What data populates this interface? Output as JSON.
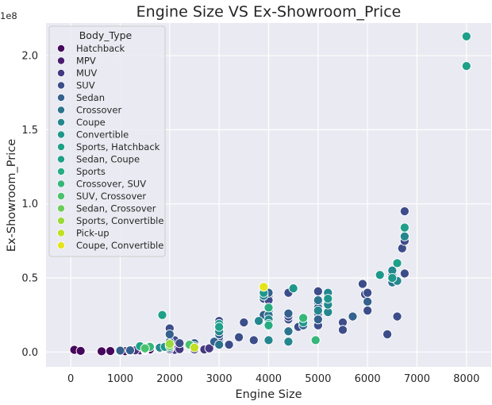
{
  "chart_data": {
    "type": "scatter",
    "title": "Engine Size VS Ex-Showroom_Price",
    "xlabel": "Engine Size",
    "ylabel": "Ex-Showroom_Price",
    "y_offset_label": "1e8",
    "xlim": [
      -500,
      8500
    ],
    "ylim": [
      -10000000,
      222000000
    ],
    "x_ticks": [
      0,
      1000,
      2000,
      3000,
      4000,
      5000,
      6000,
      7000,
      8000
    ],
    "x_tick_labels": [
      "0",
      "1000",
      "2000",
      "3000",
      "4000",
      "5000",
      "6000",
      "7000",
      "8000"
    ],
    "y_ticks": [
      0,
      50000000,
      100000000,
      150000000,
      200000000
    ],
    "y_tick_labels": [
      "0.0",
      "0.5",
      "1.0",
      "1.5",
      "2.0"
    ],
    "grid": true,
    "legend": {
      "title": "Body_Type",
      "placement": "top-left",
      "entries": [
        {
          "name": "Hatchback",
          "color": "#46085c"
        },
        {
          "name": "MPV",
          "color": "#481d6f"
        },
        {
          "name": "MUV",
          "color": "#453781"
        },
        {
          "name": "SUV",
          "color": "#3d4d8a"
        },
        {
          "name": "Sedan",
          "color": "#34618d"
        },
        {
          "name": "Crossover",
          "color": "#2b748e"
        },
        {
          "name": "Coupe",
          "color": "#24878e"
        },
        {
          "name": "Convertible",
          "color": "#1f988b"
        },
        {
          "name": "Sports, Hatchback",
          "color": "#1fa187"
        },
        {
          "name": "Sedan, Coupe",
          "color": "#1fa088"
        },
        {
          "name": "Sports",
          "color": "#27ad81"
        },
        {
          "name": "Crossover, SUV",
          "color": "#35b779"
        },
        {
          "name": "SUV, Crossover",
          "color": "#4ac16d"
        },
        {
          "name": "Sedan, Crossover",
          "color": "#6ccd5a"
        },
        {
          "name": "Sports, Convertible",
          "color": "#9bd93c"
        },
        {
          "name": "Pick-up",
          "color": "#c2df23"
        },
        {
          "name": "Coupe, Convertible",
          "color": "#e5e419"
        }
      ]
    },
    "series": [
      {
        "name": "Hatchback",
        "points": [
          [
            72,
            1500000
          ],
          [
            200,
            800000
          ],
          [
            624,
            500000
          ],
          [
            800,
            700000
          ],
          [
            998,
            500000
          ],
          [
            1000,
            800000
          ],
          [
            1100,
            600000
          ],
          [
            1200,
            900000
          ],
          [
            1197,
            700000
          ],
          [
            1248,
            1000000
          ],
          [
            1300,
            1200000
          ],
          [
            1400,
            1500000
          ],
          [
            1500,
            2000000
          ],
          [
            1600,
            1800000
          ]
        ]
      },
      {
        "name": "MPV",
        "points": [
          [
            1200,
            800000
          ],
          [
            1400,
            1100000
          ],
          [
            1500,
            1300000
          ],
          [
            2000,
            3000000
          ],
          [
            2200,
            4000000
          ]
        ]
      },
      {
        "name": "MUV",
        "points": [
          [
            1300,
            1200000
          ],
          [
            1500,
            1500000
          ],
          [
            2100,
            1500000
          ],
          [
            2200,
            2000000
          ],
          [
            2500,
            1800000
          ],
          [
            2700,
            1800000
          ],
          [
            2800,
            2500000
          ]
        ]
      },
      {
        "name": "SUV",
        "points": [
          [
            1200,
            1200000
          ],
          [
            1500,
            2000000
          ],
          [
            1800,
            2500000
          ],
          [
            2000,
            2000000
          ],
          [
            2000,
            16000000
          ],
          [
            2100,
            8000000
          ],
          [
            2200,
            6000000
          ],
          [
            2500,
            5000000
          ],
          [
            3000,
            8000000
          ],
          [
            3000,
            10000000
          ],
          [
            3000,
            12000000
          ],
          [
            3000,
            18000000
          ],
          [
            3000,
            21000000
          ],
          [
            3200,
            5000000
          ],
          [
            3400,
            10000000
          ],
          [
            3500,
            20000000
          ],
          [
            3700,
            8000000
          ],
          [
            3900,
            36000000
          ],
          [
            4000,
            27000000
          ],
          [
            4000,
            38000000
          ],
          [
            4000,
            35000000
          ],
          [
            4400,
            40000000
          ],
          [
            4400,
            22000000
          ],
          [
            4400,
            24000000
          ],
          [
            4600,
            17000000
          ],
          [
            5000,
            26000000
          ],
          [
            5000,
            18000000
          ],
          [
            5000,
            41000000
          ],
          [
            5000,
            33000000
          ],
          [
            5500,
            20000000
          ],
          [
            5500,
            15000000
          ],
          [
            5900,
            46000000
          ],
          [
            5950,
            39000000
          ],
          [
            6000,
            28000000
          ],
          [
            6000,
            40000000
          ],
          [
            6400,
            12000000
          ],
          [
            6500,
            52000000
          ],
          [
            6600,
            24000000
          ],
          [
            6700,
            70000000
          ],
          [
            6750,
            75000000
          ],
          [
            6750,
            95000000
          ],
          [
            6750,
            53000000
          ]
        ]
      },
      {
        "name": "Sedan",
        "points": [
          [
            1000,
            1000000
          ],
          [
            1200,
            1200000
          ],
          [
            1500,
            2500000
          ],
          [
            1600,
            4000000
          ],
          [
            2000,
            4000000
          ],
          [
            2000,
            7000000
          ],
          [
            2000,
            12000000
          ],
          [
            2500,
            6000000
          ],
          [
            2900,
            7000000
          ],
          [
            3000,
            12000000
          ],
          [
            3000,
            15000000
          ],
          [
            3900,
            25000000
          ],
          [
            4000,
            40000000
          ],
          [
            4000,
            22000000
          ],
          [
            4400,
            26000000
          ],
          [
            4400,
            14000000
          ],
          [
            4700,
            18000000
          ],
          [
            5000,
            22000000
          ],
          [
            5000,
            30000000
          ],
          [
            5700,
            24000000
          ],
          [
            6000,
            34000000
          ]
        ]
      },
      {
        "name": "Crossover",
        "points": [
          [
            1500,
            2000000
          ],
          [
            2000,
            3000000
          ],
          [
            2500,
            4000000
          ],
          [
            3000,
            5000000
          ],
          [
            4000,
            25000000
          ],
          [
            4400,
            14000000
          ],
          [
            5000,
            35000000
          ],
          [
            5200,
            38000000
          ],
          [
            6500,
            47000000
          ]
        ]
      },
      {
        "name": "Coupe",
        "points": [
          [
            1800,
            3000000
          ],
          [
            2000,
            5000000
          ],
          [
            3000,
            14000000
          ],
          [
            3800,
            21000000
          ],
          [
            3900,
            38000000
          ],
          [
            4000,
            22000000
          ],
          [
            4000,
            8000000
          ],
          [
            4400,
            7000000
          ],
          [
            5000,
            28000000
          ],
          [
            5200,
            27000000
          ],
          [
            5200,
            32000000
          ],
          [
            5200,
            40000000
          ],
          [
            6500,
            55000000
          ],
          [
            6600,
            48000000
          ],
          [
            6750,
            78000000
          ]
        ]
      },
      {
        "name": "Convertible",
        "points": [
          [
            1500,
            3000000
          ],
          [
            1900,
            3500000
          ],
          [
            3000,
            19000000
          ],
          [
            3900,
            40000000
          ],
          [
            4000,
            19000000
          ],
          [
            4500,
            43000000
          ],
          [
            4700,
            20000000
          ],
          [
            5200,
            36000000
          ],
          [
            6250,
            52000000
          ],
          [
            6500,
            50000000
          ]
        ]
      },
      {
        "name": "Sports, Hatchback",
        "points": [
          [
            1400,
            4000000
          ]
        ]
      },
      {
        "name": "Sedan, Coupe",
        "points": [
          [
            1850,
            25000000
          ],
          [
            3000,
            17000000
          ],
          [
            6600,
            60000000
          ],
          [
            6750,
            84000000
          ],
          [
            8000,
            193000000
          ],
          [
            8000,
            213000000
          ]
        ]
      },
      {
        "name": "Sports",
        "points": [
          [
            2000,
            5000000
          ],
          [
            4000,
            30000000
          ],
          [
            4000,
            18000000
          ]
        ]
      },
      {
        "name": "Crossover, SUV",
        "points": [
          [
            1600,
            3500000
          ],
          [
            4700,
            23000000
          ],
          [
            4950,
            8000000
          ]
        ]
      },
      {
        "name": "SUV, Crossover",
        "points": [
          [
            1500,
            2500000
          ],
          [
            2400,
            5000000
          ]
        ]
      },
      {
        "name": "Sedan, Crossover",
        "points": [
          [
            2000,
            4000000
          ]
        ]
      },
      {
        "name": "Sports, Convertible",
        "points": [
          [
            2000,
            5500000
          ]
        ]
      },
      {
        "name": "Pick-up",
        "points": [
          [
            2500,
            3000000
          ]
        ]
      },
      {
        "name": "Coupe, Convertible",
        "points": [
          [
            3900,
            44000000
          ]
        ]
      }
    ]
  }
}
